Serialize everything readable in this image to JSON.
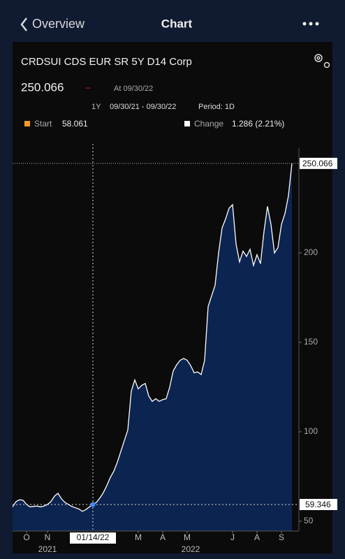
{
  "nav": {
    "back": "Overview",
    "title": "Chart"
  },
  "header": {
    "security": "CRDSUI CDS EUR SR 5Y D14 Corp",
    "price": "250.066",
    "change_dash": "--",
    "as_of": "At 09/30/22",
    "range": "1Y",
    "dates": "09/30/21 - 09/30/22",
    "period": "Period: 1D",
    "start_label": "Start",
    "start_value": "58.061",
    "change_label": "Change",
    "change_value": "1.286 (2.21%)"
  },
  "chart_data": {
    "type": "area",
    "color": "#ffffff",
    "fill_color": "#0c2450",
    "values": [
      58.061,
      61,
      62,
      61.7,
      59.4,
      58,
      58.3,
      58.5,
      58,
      58.5,
      59.4,
      61,
      64,
      65.6,
      62.5,
      60.5,
      59.4,
      58.2,
      57.5,
      56.8,
      55.5,
      56.5,
      58,
      59.346,
      60.5,
      63,
      66,
      70,
      74.5,
      78,
      83,
      89,
      95,
      101,
      122.7,
      129,
      124,
      126,
      127,
      120,
      117,
      118.5,
      117,
      118,
      118.5,
      125,
      134,
      137.5,
      140,
      141,
      140,
      137,
      133,
      133.5,
      132,
      140,
      170,
      176,
      182,
      200,
      214,
      219,
      225,
      227,
      205,
      195,
      201,
      198,
      202,
      193,
      199,
      194,
      212,
      226,
      216,
      200,
      203,
      216,
      222,
      232,
      250.066
    ],
    "ylim": [
      44.5,
      258.6
    ],
    "yticks": [
      50,
      100,
      150,
      200
    ],
    "xticks": [
      {
        "value": 4,
        "label": "O"
      },
      {
        "value": 10,
        "label": "N"
      },
      {
        "value": 36,
        "label": "M"
      },
      {
        "value": 43,
        "label": "A"
      },
      {
        "value": 50,
        "label": "M"
      },
      {
        "value": 63,
        "label": "J"
      },
      {
        "value": 70,
        "label": "A"
      },
      {
        "value": 77,
        "label": "S"
      }
    ],
    "year_labels": [
      {
        "value": 10,
        "label": "2021"
      },
      {
        "value": 51,
        "label": "2022"
      }
    ],
    "crosshair": {
      "index": 23,
      "date": "01/14/22"
    },
    "grid": false
  }
}
